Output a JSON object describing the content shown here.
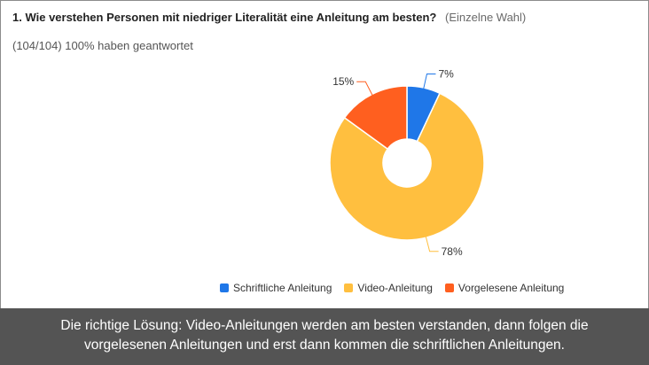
{
  "question": {
    "text": "1. Wie verstehen Personen mit niedriger Literalität eine Anleitung am besten?",
    "type": "(Einzelne Wahl)"
  },
  "response_count": "(104/104) 100% haben geantwortet",
  "chart_data": {
    "type": "pie",
    "style": "donut",
    "title": "1. Wie verstehen Personen mit niedriger Literalität eine Anleitung am besten?",
    "categories": [
      "Schriftliche Anleitung",
      "Video-Anleitung",
      "Vorgelesene Anleitung"
    ],
    "values": [
      7,
      78,
      15
    ],
    "labels": [
      "7%",
      "78%",
      "15%"
    ],
    "colors": [
      "#1f77e8",
      "#ffbf3f",
      "#ff5f1f"
    ],
    "legend_position": "bottom"
  },
  "caption": {
    "line1": "Die richtige Lösung: Video-Anleitungen werden am besten verstanden, dann folgen die",
    "line2": "vorgelesenen Anleitungen und erst dann kommen die schriftlichen Anleitungen."
  }
}
